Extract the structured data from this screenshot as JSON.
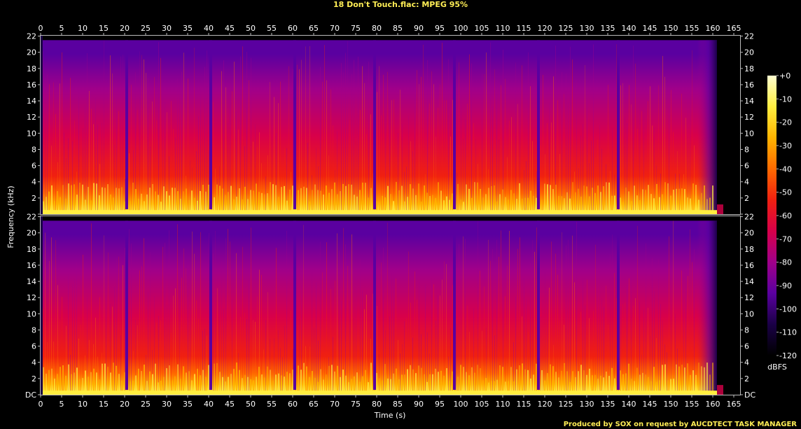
{
  "chart_data": {
    "type": "heatmap",
    "title": "18 Don't Touch.flac: MPEG 95%",
    "xlabel": "Time (s)",
    "ylabel": "Frequency (kHz)",
    "colorbar_label": "dBFS",
    "credit": "Produced by SOX on request by AUCDTECT TASK MANAGER",
    "xlim": [
      0,
      166.5
    ],
    "ylim": [
      0,
      22.05
    ],
    "x_ticks": [
      "0",
      "5",
      "10",
      "15",
      "20",
      "25",
      "30",
      "35",
      "40",
      "45",
      "50",
      "55",
      "60",
      "65",
      "70",
      "75",
      "80",
      "85",
      "90",
      "95",
      "100",
      "105",
      "110",
      "115",
      "120",
      "125",
      "130",
      "135",
      "140",
      "145",
      "150",
      "155",
      "160",
      "165"
    ],
    "y_ticks": [
      "DC",
      "2",
      "4",
      "6",
      "8",
      "10",
      "12",
      "14",
      "16",
      "18",
      "20",
      "22"
    ],
    "colorbar_ticks": [
      "+0",
      "-10",
      "-20",
      "-30",
      "-40",
      "-50",
      "-60",
      "-70",
      "-80",
      "-90",
      "-100",
      "-110",
      "-120"
    ],
    "colorbar_range_dbfs": [
      -120,
      0
    ],
    "channels": 2,
    "content_cutoff_khz": 21.5,
    "audio_end_s": 161,
    "section_break_times_s": [
      20.5,
      40.5,
      60.5,
      79.5,
      98.5,
      118.5,
      137.5
    ],
    "colormap": [
      "#000000",
      "#1a0046",
      "#5a00a0",
      "#a0008a",
      "#d8004a",
      "#f02010",
      "#ff6a00",
      "#ffb400",
      "#ffee40",
      "#ffffd0"
    ]
  }
}
